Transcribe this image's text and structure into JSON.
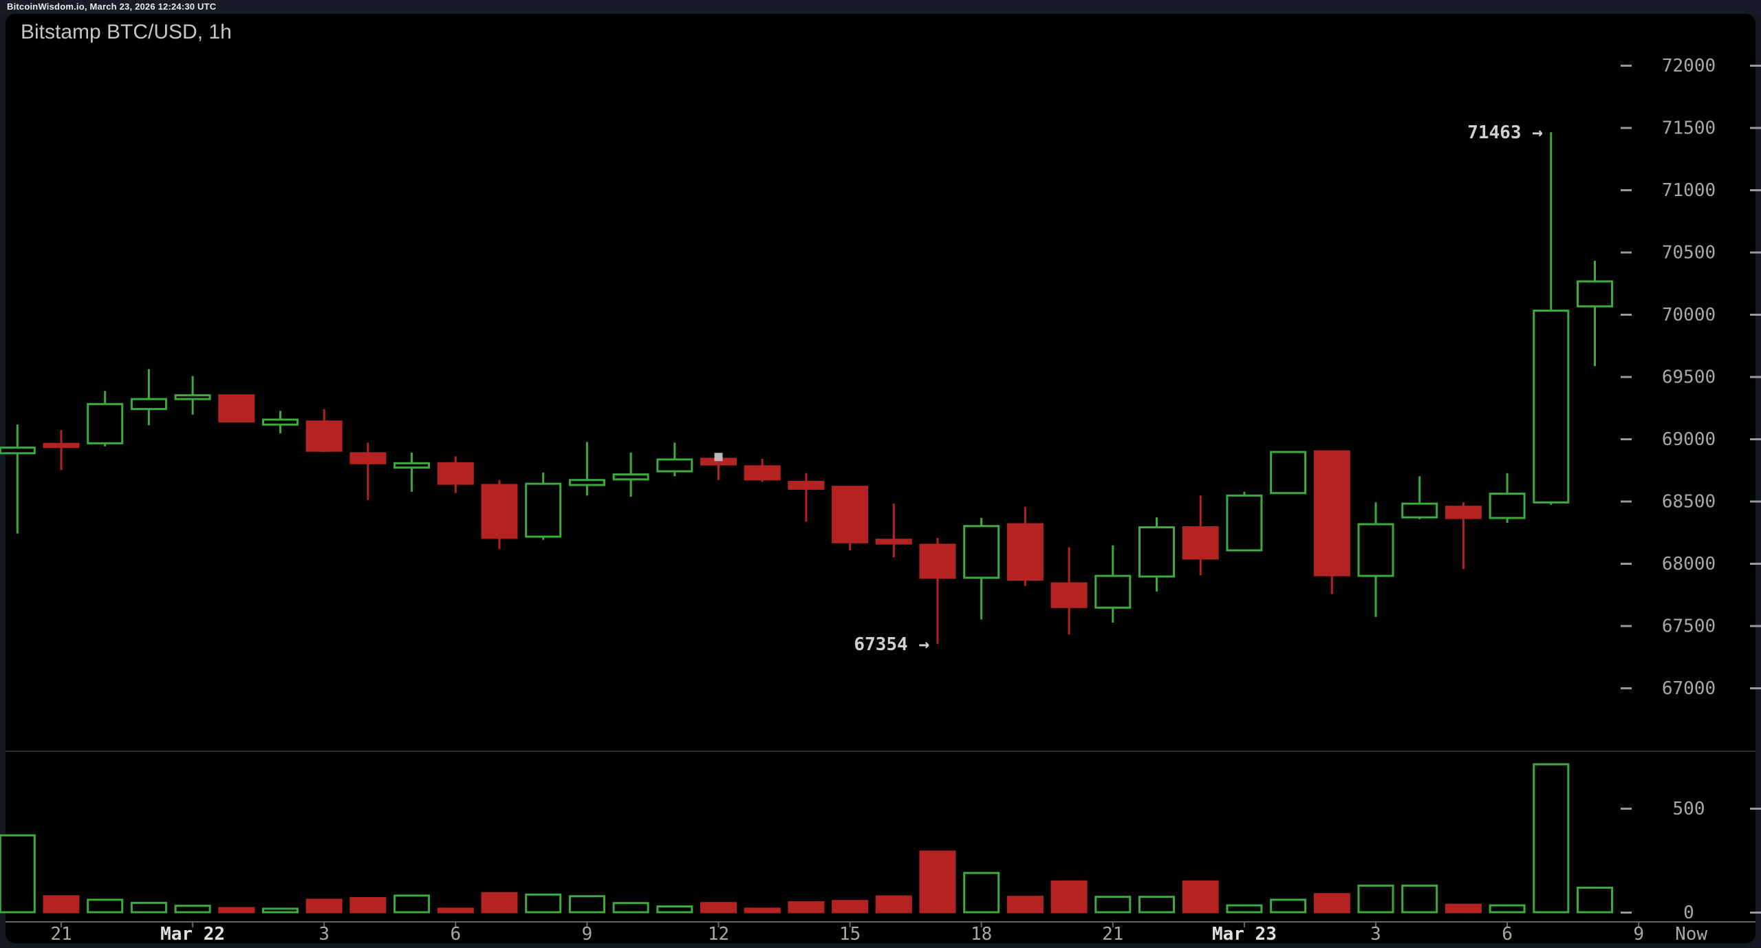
{
  "header": {
    "site_line": "BitcoinWisdom.io, March 23, 2026 12:24:30 UTC"
  },
  "chart": {
    "title": "Bitstamp BTC/USD, 1h"
  },
  "colors": {
    "page_bg": "#141823",
    "panel_bg": "#000000",
    "topbar_bg": "#161b27",
    "up": "#3caa3c",
    "down": "#b42222",
    "axis_text": "#a8a8a8",
    "date_text": "#e0e0e0",
    "tick_dash": "#9a9a9a",
    "axis_line": "#666666",
    "separator": "#2c2c2c",
    "annotation_text": "#d0d0d0",
    "marker": "#b8b8b8",
    "title_text": "#c6c6c6"
  },
  "y_axis": {
    "price_ticks": [
      "72000",
      "71500",
      "71000",
      "70500",
      "70000",
      "69500",
      "69000",
      "68500",
      "68000",
      "67500",
      "67000"
    ],
    "volume_ticks": [
      "500",
      "0"
    ]
  },
  "x_axis": {
    "labels": [
      {
        "text": "21",
        "index": 1,
        "bold": false
      },
      {
        "text": "Mar 22",
        "index": 4,
        "bold": true
      },
      {
        "text": "3",
        "index": 7,
        "bold": false
      },
      {
        "text": "6",
        "index": 10,
        "bold": false
      },
      {
        "text": "9",
        "index": 13,
        "bold": false
      },
      {
        "text": "12",
        "index": 16,
        "bold": false
      },
      {
        "text": "15",
        "index": 19,
        "bold": false
      },
      {
        "text": "18",
        "index": 22,
        "bold": false
      },
      {
        "text": "21",
        "index": 25,
        "bold": false
      },
      {
        "text": "Mar 23",
        "index": 28,
        "bold": true
      },
      {
        "text": "3",
        "index": 31,
        "bold": false
      },
      {
        "text": "6",
        "index": 34,
        "bold": false
      },
      {
        "text": "9",
        "index": 37,
        "bold": false
      },
      {
        "text": "Now",
        "index": 38.2,
        "bold": false,
        "no_tick": true
      }
    ]
  },
  "annotations": [
    {
      "text": "71463 →",
      "candle_index": 35,
      "price": 71463,
      "anchor": "high"
    },
    {
      "text": "67354 →",
      "candle_index": 21,
      "price": 67354,
      "anchor": "low"
    }
  ],
  "cursor_marker": {
    "candle_index": 16,
    "price": 68855
  },
  "chart_data": {
    "type": "candlestick",
    "title": "Bitstamp BTC/USD, 1h",
    "exchange": "Bitstamp",
    "interval": "1h",
    "price_axis": {
      "visible_min": 67000,
      "visible_max": 72000,
      "tick_step": 500,
      "position": "right"
    },
    "volume_axis": {
      "ticks": [
        500,
        0
      ]
    },
    "annotated_high": 71463,
    "annotated_low": 67354,
    "candles": [
      {
        "time": "Mar 21 20:00",
        "open": 68885,
        "high": 69115,
        "low": 68240,
        "close": 68930,
        "volume": 370
      },
      {
        "time": "Mar 21 21:00",
        "open": 68960,
        "high": 69070,
        "low": 68750,
        "close": 68935,
        "volume": 77
      },
      {
        "time": "Mar 21 22:00",
        "open": 68965,
        "high": 69385,
        "low": 68940,
        "close": 69280,
        "volume": 60
      },
      {
        "time": "Mar 21 23:00",
        "open": 69240,
        "high": 69560,
        "low": 69110,
        "close": 69320,
        "volume": 45
      },
      {
        "time": "Mar 22 00:00",
        "open": 69320,
        "high": 69505,
        "low": 69195,
        "close": 69350,
        "volume": 31
      },
      {
        "time": "Mar 22 01:00",
        "open": 69350,
        "high": 69355,
        "low": 69135,
        "close": 69140,
        "volume": 20
      },
      {
        "time": "Mar 22 02:00",
        "open": 69115,
        "high": 69225,
        "low": 69045,
        "close": 69155,
        "volume": 17
      },
      {
        "time": "Mar 22 03:00",
        "open": 69140,
        "high": 69240,
        "low": 68895,
        "close": 68905,
        "volume": 60
      },
      {
        "time": "Mar 22 04:00",
        "open": 68885,
        "high": 68970,
        "low": 68510,
        "close": 68805,
        "volume": 68
      },
      {
        "time": "Mar 22 05:00",
        "open": 68770,
        "high": 68890,
        "low": 68575,
        "close": 68805,
        "volume": 80
      },
      {
        "time": "Mar 22 06:00",
        "open": 68805,
        "high": 68860,
        "low": 68565,
        "close": 68640,
        "volume": 17
      },
      {
        "time": "Mar 22 07:00",
        "open": 68630,
        "high": 68670,
        "low": 68115,
        "close": 68205,
        "volume": 92
      },
      {
        "time": "Mar 22 08:00",
        "open": 68215,
        "high": 68730,
        "low": 68190,
        "close": 68640,
        "volume": 85
      },
      {
        "time": "Mar 22 09:00",
        "open": 68630,
        "high": 68975,
        "low": 68545,
        "close": 68670,
        "volume": 77
      },
      {
        "time": "Mar 22 10:00",
        "open": 68675,
        "high": 68890,
        "low": 68535,
        "close": 68715,
        "volume": 44
      },
      {
        "time": "Mar 22 11:00",
        "open": 68740,
        "high": 68970,
        "low": 68700,
        "close": 68835,
        "volume": 28
      },
      {
        "time": "Mar 22 12:00",
        "open": 68840,
        "high": 68860,
        "low": 68670,
        "close": 68795,
        "volume": 44
      },
      {
        "time": "Mar 22 13:00",
        "open": 68780,
        "high": 68840,
        "low": 68655,
        "close": 68675,
        "volume": 17
      },
      {
        "time": "Mar 22 14:00",
        "open": 68655,
        "high": 68725,
        "low": 68335,
        "close": 68600,
        "volume": 48
      },
      {
        "time": "Mar 22 15:00",
        "open": 68615,
        "high": 68620,
        "low": 68105,
        "close": 68170,
        "volume": 54
      },
      {
        "time": "Mar 22 16:00",
        "open": 68190,
        "high": 68480,
        "low": 68050,
        "close": 68160,
        "volume": 76
      },
      {
        "time": "Mar 22 17:00",
        "open": 68150,
        "high": 68205,
        "low": 67354,
        "close": 67885,
        "volume": 292
      },
      {
        "time": "Mar 22 18:00",
        "open": 67885,
        "high": 68365,
        "low": 67550,
        "close": 68300,
        "volume": 189
      },
      {
        "time": "Mar 22 19:00",
        "open": 68315,
        "high": 68455,
        "low": 67820,
        "close": 67870,
        "volume": 74
      },
      {
        "time": "Mar 22 20:00",
        "open": 67840,
        "high": 68130,
        "low": 67430,
        "close": 67650,
        "volume": 148
      },
      {
        "time": "Mar 22 21:00",
        "open": 67645,
        "high": 68145,
        "low": 67525,
        "close": 67900,
        "volume": 74
      },
      {
        "time": "Mar 22 22:00",
        "open": 67895,
        "high": 68370,
        "low": 67775,
        "close": 68290,
        "volume": 74
      },
      {
        "time": "Mar 22 23:00",
        "open": 68290,
        "high": 68545,
        "low": 67905,
        "close": 68040,
        "volume": 148
      },
      {
        "time": "Mar 23 00:00",
        "open": 68105,
        "high": 68575,
        "low": 68100,
        "close": 68545,
        "volume": 33
      },
      {
        "time": "Mar 23 01:00",
        "open": 68565,
        "high": 68895,
        "low": 68560,
        "close": 68895,
        "volume": 60
      },
      {
        "time": "Mar 23 02:00",
        "open": 68900,
        "high": 68900,
        "low": 67755,
        "close": 67905,
        "volume": 87
      },
      {
        "time": "Mar 23 03:00",
        "open": 67900,
        "high": 68490,
        "low": 67570,
        "close": 68315,
        "volume": 128
      },
      {
        "time": "Mar 23 04:00",
        "open": 68370,
        "high": 68700,
        "low": 68355,
        "close": 68480,
        "volume": 128
      },
      {
        "time": "Mar 23 05:00",
        "open": 68455,
        "high": 68490,
        "low": 67955,
        "close": 68365,
        "volume": 36
      },
      {
        "time": "Mar 23 06:00",
        "open": 68365,
        "high": 68725,
        "low": 68325,
        "close": 68560,
        "volume": 33
      },
      {
        "time": "Mar 23 07:00",
        "open": 68490,
        "high": 71463,
        "low": 68470,
        "close": 70030,
        "volume": 712
      },
      {
        "time": "Mar 23 08:00",
        "open": 70065,
        "high": 70430,
        "low": 69585,
        "close": 70265,
        "volume": 118
      }
    ]
  }
}
